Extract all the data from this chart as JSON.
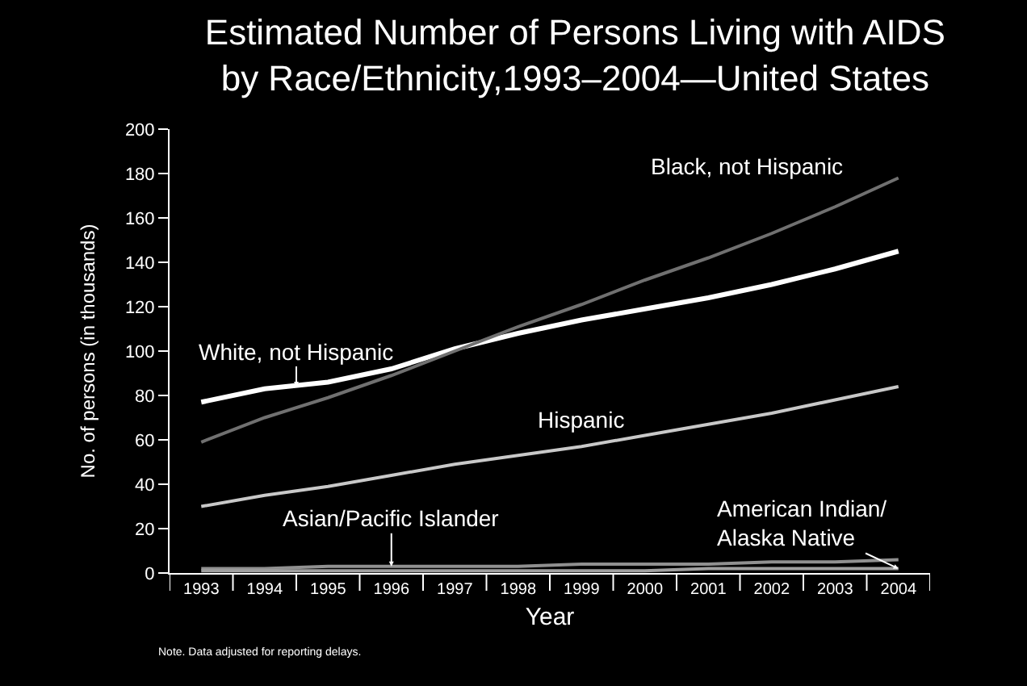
{
  "chart_data": {
    "type": "line",
    "title": "Estimated Number of Persons Living with AIDS\nby Race/Ethnicity,1993–2004—United States",
    "xlabel": "Year",
    "ylabel": "No. of persons (in thousands)",
    "categories": [
      "1993",
      "1994",
      "1995",
      "1996",
      "1997",
      "1998",
      "1999",
      "2000",
      "2001",
      "2002",
      "2003",
      "2004"
    ],
    "series": [
      {
        "name": "White, not Hispanic",
        "color": "#ffffff",
        "values": [
          77,
          83,
          86,
          92,
          101,
          108,
          114,
          119,
          124,
          130,
          137,
          145
        ]
      },
      {
        "name": "Black, not Hispanic",
        "color": "#707070",
        "values": [
          59,
          70,
          79,
          89,
          100,
          111,
          121,
          132,
          142,
          153,
          165,
          178
        ]
      },
      {
        "name": "Hispanic",
        "color": "#c8c8c8",
        "values": [
          30,
          35,
          39,
          44,
          49,
          53,
          57,
          62,
          67,
          72,
          78,
          84
        ]
      },
      {
        "name": "Asian/Pacific Islander",
        "color": "#909090",
        "values": [
          2,
          2,
          3,
          3,
          3,
          3,
          4,
          4,
          4,
          5,
          5,
          6
        ]
      },
      {
        "name": "American Indian/\nAlaska Native",
        "color": "#a0a0a0",
        "values": [
          1,
          1,
          1,
          1,
          1,
          1,
          1,
          1,
          2,
          2,
          2,
          2
        ]
      }
    ],
    "ylim": [
      0,
      200
    ],
    "yticks": [
      0,
      20,
      40,
      60,
      80,
      100,
      120,
      140,
      160,
      180,
      200
    ],
    "grid": false,
    "legend": false,
    "marker": "none",
    "line_style": "solid",
    "annotations": [
      "Note. Data adjusted for reporting delays."
    ]
  }
}
